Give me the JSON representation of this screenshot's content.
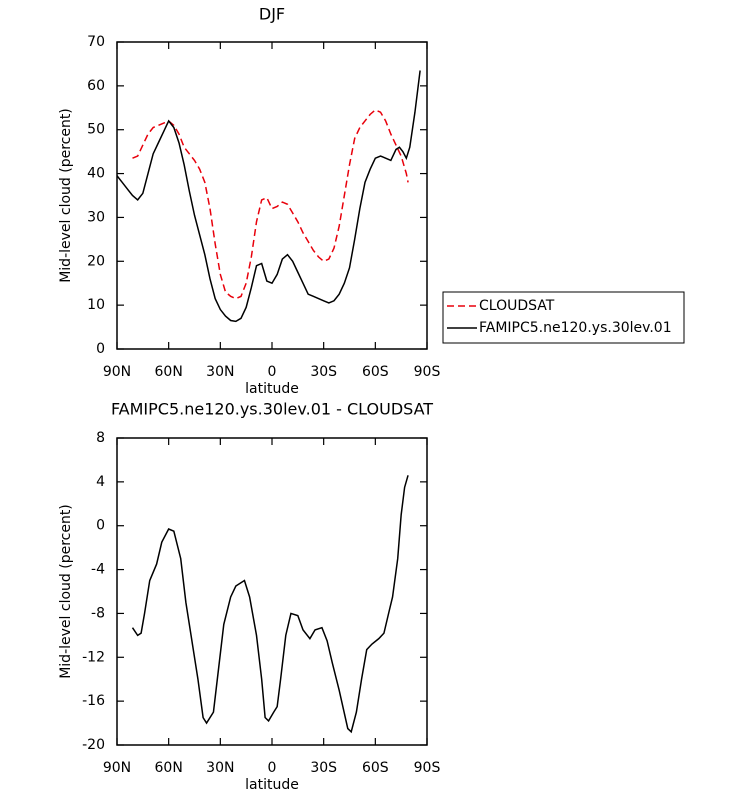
{
  "chart_data": [
    {
      "type": "line",
      "title": "DJF",
      "xlabel": "latitude",
      "ylabel": "Mid-level cloud (percent)",
      "xlim": [
        90,
        -90
      ],
      "xticks": [
        {
          "value": 90,
          "label": "90N"
        },
        {
          "value": 60,
          "label": "60N"
        },
        {
          "value": 30,
          "label": "30N"
        },
        0,
        {
          "value": -30,
          "label": "30S"
        },
        {
          "value": -60,
          "label": "60S"
        },
        {
          "value": -90,
          "label": "90S"
        }
      ],
      "ylim": [
        0,
        70
      ],
      "yticks": [
        0,
        10,
        20,
        30,
        40,
        50,
        60,
        70
      ],
      "legend": "outside-right",
      "series": [
        {
          "name": "CLOUDSAT",
          "color": "#e8000b",
          "dash": true,
          "x": [
            81,
            78,
            75,
            72,
            69,
            66,
            63,
            60,
            57,
            54,
            51,
            48,
            45,
            42,
            39,
            36,
            33,
            30,
            27,
            24,
            21,
            18,
            15,
            12,
            9,
            6,
            3,
            0,
            -3,
            -6,
            -9,
            -12,
            -15,
            -18,
            -21,
            -24,
            -27,
            -30,
            -33,
            -36,
            -39,
            -42,
            -45,
            -48,
            -51,
            -54,
            -57,
            -60,
            -63,
            -66,
            -69,
            -72,
            -75,
            -78,
            -79
          ],
          "values": [
            43.5,
            44,
            46.5,
            49,
            50.5,
            51,
            51.5,
            52,
            51,
            49,
            46,
            44.5,
            43,
            41,
            38,
            32,
            24,
            17,
            13,
            12,
            11.5,
            12,
            15,
            21,
            29,
            34,
            34.5,
            32,
            32.5,
            33.5,
            33,
            31,
            29,
            26.5,
            24.5,
            22.5,
            21,
            20,
            20.5,
            23,
            28,
            35,
            42,
            48,
            50.5,
            52,
            53.5,
            54.5,
            54,
            52,
            49,
            46.5,
            44,
            40,
            38
          ]
        },
        {
          "name": "FAMIPC5.ne120.ys.30lev.01",
          "color": "#000000",
          "dash": false,
          "x": [
            90,
            87,
            84,
            81,
            78,
            75,
            72,
            69,
            66,
            63,
            60,
            57,
            54,
            51,
            48,
            45,
            42,
            39,
            36,
            33,
            30,
            27,
            24,
            21,
            18,
            15,
            12,
            9,
            6,
            3,
            0,
            -3,
            -6,
            -9,
            -12,
            -15,
            -18,
            -21,
            -24,
            -27,
            -30,
            -33,
            -36,
            -39,
            -42,
            -45,
            -48,
            -51,
            -54,
            -57,
            -60,
            -63,
            -66,
            -69,
            -72,
            -74,
            -76,
            -78,
            -80,
            -83,
            -86
          ],
          "values": [
            39.5,
            38,
            36.5,
            35,
            34,
            35.5,
            40,
            44.5,
            47,
            49.5,
            52,
            50.5,
            47,
            42,
            36,
            30.5,
            26,
            21.5,
            16,
            11.5,
            9,
            7.5,
            6.5,
            6.3,
            7,
            9.5,
            14,
            19,
            19.5,
            15.5,
            15,
            17,
            20.5,
            21.5,
            20,
            17.5,
            15,
            12.5,
            12,
            11.5,
            11,
            10.5,
            11,
            12.5,
            15,
            18.5,
            25,
            32,
            38,
            41,
            43.5,
            44,
            43.5,
            43,
            45.5,
            46,
            45,
            43.5,
            46,
            54,
            63.5
          ]
        }
      ]
    },
    {
      "type": "line",
      "title": "FAMIPC5.ne120.ys.30lev.01 - CLOUDSAT",
      "xlabel": "latitude",
      "ylabel": "Mid-level cloud (percent)",
      "xlim": [
        90,
        -90
      ],
      "xticks": [
        {
          "value": 90,
          "label": "90N"
        },
        {
          "value": 60,
          "label": "60N"
        },
        {
          "value": 30,
          "label": "30N"
        },
        0,
        {
          "value": -30,
          "label": "30S"
        },
        {
          "value": -60,
          "label": "60S"
        },
        {
          "value": -90,
          "label": "90S"
        }
      ],
      "ylim": [
        -20,
        8
      ],
      "yticks": [
        -20,
        -16,
        -12,
        -8,
        -4,
        0,
        4,
        8
      ],
      "series": [
        {
          "color": "#000000",
          "dash": false,
          "x": [
            81,
            78,
            76,
            74,
            71,
            67,
            64,
            60,
            57,
            53,
            50,
            46,
            43,
            40,
            38,
            34,
            31,
            28,
            24,
            21,
            16,
            13,
            9,
            6,
            4,
            2,
            -1,
            -3,
            -5,
            -8,
            -11,
            -15,
            -18,
            -22,
            -25,
            -29,
            -32,
            -35,
            -39,
            -44,
            -46,
            -49,
            -52,
            -55,
            -58,
            -62,
            -65,
            -68,
            -70,
            -73,
            -75,
            -77,
            -79
          ],
          "values": [
            -9.3,
            -10,
            -9.8,
            -8,
            -5,
            -3.5,
            -1.5,
            -0.3,
            -0.5,
            -3,
            -7,
            -11,
            -14,
            -17.5,
            -18,
            -17,
            -13,
            -9,
            -6.5,
            -5.5,
            -5,
            -6.5,
            -10,
            -14,
            -17.5,
            -17.8,
            -17,
            -16.5,
            -14,
            -10,
            -8,
            -8.2,
            -9.5,
            -10.3,
            -9.5,
            -9.3,
            -10.5,
            -12.5,
            -15,
            -18.5,
            -18.8,
            -17,
            -14,
            -11.3,
            -10.8,
            -10.3,
            -9.8,
            -7.8,
            -6.5,
            -3,
            1,
            3.5,
            4.6
          ]
        }
      ]
    }
  ]
}
